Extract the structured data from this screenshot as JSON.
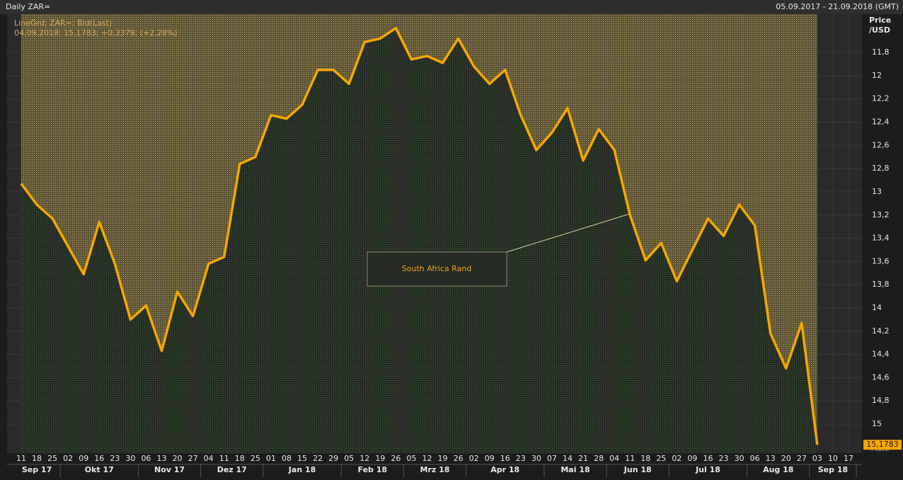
{
  "chart_data": {
    "type": "line",
    "title": "Daily ZAR=",
    "date_range": "05.09.2017 - 21.09.2018 (GMT)",
    "legend_lines": [
      "LineGrd; ZAR=; Bid(Last)",
      "04.09.2018; 15,1783; +0,3379; (+2,28%)"
    ],
    "y_axis_label": [
      "Price",
      "/USD"
    ],
    "y_axis_mode": "Auto",
    "annotation": "South Africa Rand",
    "invert_y": true,
    "grid": true,
    "ylim": [
      11.47,
      15.25
    ],
    "yticks": [
      {
        "value": 11.8,
        "label": "11,8"
      },
      12,
      {
        "value": 12.2,
        "label": "12,2"
      },
      {
        "value": 12.4,
        "label": "12,4"
      },
      {
        "value": 12.6,
        "label": "12,6"
      },
      {
        "value": 12.8,
        "label": "12,8"
      },
      13,
      {
        "value": 13.2,
        "label": "13,2"
      },
      {
        "value": 13.4,
        "label": "13,4"
      },
      {
        "value": 13.6,
        "label": "13,6"
      },
      {
        "value": 13.8,
        "label": "13,8"
      },
      14,
      {
        "value": 14.2,
        "label": "14,2"
      },
      {
        "value": 14.4,
        "label": "14,4"
      },
      {
        "value": 14.6,
        "label": "14,6"
      },
      {
        "value": 14.8,
        "label": "14,8"
      },
      15
    ],
    "months": [
      {
        "label": "Sep 17",
        "days": [
          "11",
          "18",
          "25"
        ]
      },
      {
        "label": "Okt 17",
        "days": [
          "02",
          "09",
          "16",
          "23",
          "30"
        ]
      },
      {
        "label": "Nov 17",
        "days": [
          "06",
          "13",
          "20",
          "27"
        ]
      },
      {
        "label": "Dez 17",
        "days": [
          "04",
          "11",
          "18",
          "25"
        ]
      },
      {
        "label": "Jan 18",
        "days": [
          "01",
          "08",
          "15",
          "22",
          "29"
        ]
      },
      {
        "label": "Feb 18",
        "days": [
          "05",
          "12",
          "19",
          "26"
        ]
      },
      {
        "label": "Mrz 18",
        "days": [
          "05",
          "12",
          "19",
          "26"
        ]
      },
      {
        "label": "Apr 18",
        "days": [
          "02",
          "09",
          "16",
          "23",
          "30"
        ]
      },
      {
        "label": "Mai 18",
        "days": [
          "07",
          "14",
          "21",
          "28"
        ]
      },
      {
        "label": "Jun 18",
        "days": [
          "04",
          "11",
          "18",
          "25"
        ]
      },
      {
        "label": "Jul 18",
        "days": [
          "02",
          "09",
          "16",
          "23",
          "30"
        ]
      },
      {
        "label": "Aug 18",
        "days": [
          "06",
          "13",
          "20",
          "27"
        ]
      },
      {
        "label": "Sep 18",
        "days": [
          "03",
          "10",
          "17"
        ]
      }
    ],
    "series": [
      {
        "name": "ZAR=",
        "color": "#f5a800",
        "values": [
          12.93,
          13.11,
          13.23,
          13.47,
          13.71,
          13.26,
          13.62,
          14.1,
          13.98,
          14.37,
          13.86,
          14.07,
          13.62,
          13.56,
          12.76,
          12.7,
          12.34,
          12.37,
          12.25,
          11.95,
          11.95,
          12.07,
          11.71,
          11.68,
          11.59,
          11.86,
          11.83,
          11.89,
          11.68,
          11.92,
          12.07,
          11.95,
          12.34,
          12.64,
          12.49,
          12.28,
          12.73,
          12.46,
          12.64,
          13.2,
          13.59,
          13.44,
          13.77,
          13.5,
          13.23,
          13.38,
          13.11,
          13.29,
          14.22,
          14.52,
          14.13,
          15.1783,
          null,
          null
        ]
      }
    ],
    "last_value": {
      "value": 15.1783,
      "label": "15,1783"
    }
  }
}
